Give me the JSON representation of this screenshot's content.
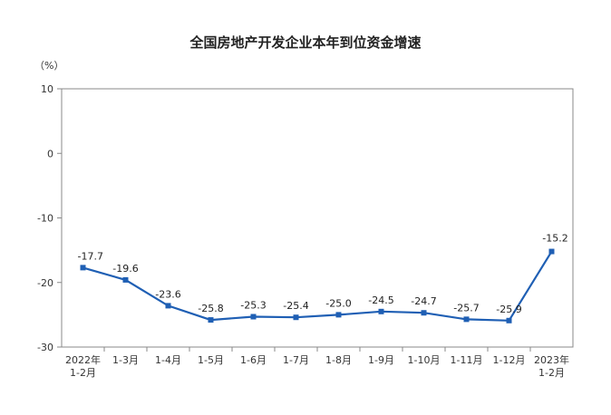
{
  "chart_data": {
    "type": "line",
    "title": "全国房地产开发企业本年到位资金增速",
    "unit": "（%）",
    "categories": [
      [
        "2022年",
        "1-2月"
      ],
      [
        "1-3月"
      ],
      [
        "1-4月"
      ],
      [
        "1-5月"
      ],
      [
        "1-6月"
      ],
      [
        "1-7月"
      ],
      [
        "1-8月"
      ],
      [
        "1-9月"
      ],
      [
        "1-10月"
      ],
      [
        "1-11月"
      ],
      [
        "1-12月"
      ],
      [
        "2023年",
        "1-2月"
      ]
    ],
    "values": [
      -17.7,
      -19.6,
      -23.6,
      -25.8,
      -25.3,
      -25.4,
      -25.0,
      -24.5,
      -24.7,
      -25.7,
      -25.9,
      -15.2
    ],
    "data_labels": [
      "-17.7",
      "-19.6",
      "-23.6",
      "-25.8",
      "-25.3",
      "-25.4",
      "-25.0",
      "-24.5",
      "-24.7",
      "-25.7",
      "-25.9",
      "-15.2"
    ],
    "y_ticks": [
      10,
      0,
      -10,
      -20,
      -30
    ],
    "ylim": [
      -30,
      10
    ],
    "grid": false,
    "line_color": "#1f5fb4",
    "axis_color": "#888888"
  }
}
